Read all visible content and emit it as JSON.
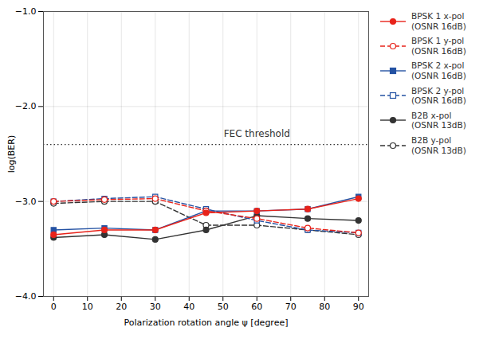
{
  "chart_data": {
    "type": "line",
    "x": [
      0,
      15,
      30,
      45,
      60,
      75,
      90
    ],
    "series": [
      {
        "name": "BPSK 1 x-pol\n(OSNR 16dB)",
        "color": "#e8231a",
        "marker": "circle",
        "line_style": "solid",
        "values": [
          -3.35,
          -3.3,
          -3.3,
          -3.12,
          -3.1,
          -3.08,
          -2.97
        ]
      },
      {
        "name": "BPSK 1 y-pol\n(OSNR 16dB)",
        "color": "#e8231a",
        "marker": "circle-open",
        "line_style": "dashed",
        "values": [
          -3.0,
          -2.98,
          -2.97,
          -3.1,
          -3.18,
          -3.28,
          -3.33
        ]
      },
      {
        "name": "BPSK 2 x-pol\n(OSNR 16dB)",
        "color": "#2452a3",
        "marker": "square",
        "line_style": "solid",
        "values": [
          -3.3,
          -3.28,
          -3.3,
          -3.1,
          -3.1,
          -3.08,
          -2.95
        ]
      },
      {
        "name": "BPSK 2 y-pol\n(OSNR 16dB)",
        "color": "#2452a3",
        "marker": "square-open",
        "line_style": "dashed",
        "values": [
          -3.0,
          -2.97,
          -2.95,
          -3.08,
          -3.2,
          -3.3,
          -3.33
        ]
      },
      {
        "name": "B2B x-pol\n(OSNR 13dB)",
        "color": "#333333",
        "marker": "circle",
        "line_style": "solid",
        "values": [
          -3.38,
          -3.35,
          -3.4,
          -3.3,
          -3.15,
          -3.18,
          -3.2
        ]
      },
      {
        "name": "B2B y-pol\n(OSNR 13dB)",
        "color": "#333333",
        "marker": "circle-open",
        "line_style": "dashed",
        "values": [
          -3.02,
          -3.0,
          -3.0,
          -3.25,
          -3.25,
          -3.3,
          -3.35
        ]
      }
    ],
    "hlines": [
      {
        "y": -2.4,
        "color": "#333333",
        "line_style": "dotted"
      }
    ],
    "annotations": [
      {
        "text": "FEC threshold",
        "x": 60,
        "y": -2.32,
        "color": "#333333"
      }
    ],
    "xlabel": "Polarization rotation angle ψ [degree]",
    "ylabel": "log(BER)",
    "xlim": [
      -3,
      93
    ],
    "xticks": [
      0,
      10,
      20,
      30,
      40,
      50,
      60,
      70,
      80,
      90
    ],
    "ylim": [
      -4,
      -1
    ],
    "yticks": [
      -4,
      -3,
      -2,
      -1
    ],
    "grid": true,
    "legend": "right"
  }
}
